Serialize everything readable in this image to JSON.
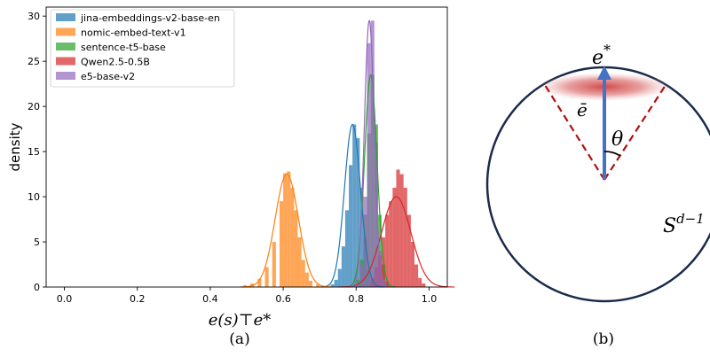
{
  "chart_data": [
    {
      "type": "histogram",
      "subcaption": "(a)",
      "xlabel": "e(s)⊤e*",
      "ylabel": "density",
      "xlim": [
        -0.05,
        1.05
      ],
      "ylim": [
        0,
        31
      ],
      "xticks": [
        "0.0",
        "0.2",
        "0.4",
        "0.6",
        "0.8",
        "1.0"
      ],
      "yticks": [
        "0",
        "5",
        "10",
        "15",
        "20",
        "25",
        "30"
      ],
      "legend_position": "top-left",
      "series": [
        {
          "name": "jina-embeddings-v2-base-en",
          "color": "#1f77b4",
          "fit_mean": 0.79,
          "fit_sd": 0.022,
          "fit_peak": 18.0,
          "bins": [
            [
              0.73,
              0.3
            ],
            [
              0.74,
              0.8
            ],
            [
              0.75,
              2.0
            ],
            [
              0.76,
              4.5
            ],
            [
              0.77,
              8.5
            ],
            [
              0.78,
              13.5
            ],
            [
              0.79,
              18.0
            ],
            [
              0.8,
              16.5
            ],
            [
              0.81,
              11.0
            ],
            [
              0.82,
              5.5
            ],
            [
              0.83,
              2.0
            ],
            [
              0.84,
              0.6
            ]
          ]
        },
        {
          "name": "nomic-embed-text-v1",
          "color": "#ff7f0e",
          "fit_mean": 0.61,
          "fit_sd": 0.032,
          "fit_peak": 12.5,
          "bins": [
            [
              0.49,
              0.2
            ],
            [
              0.51,
              0.4
            ],
            [
              0.53,
              0.9
            ],
            [
              0.55,
              2.2
            ],
            [
              0.57,
              5.0
            ],
            [
              0.59,
              9.5
            ],
            [
              0.6,
              12.6
            ],
            [
              0.61,
              12.8
            ],
            [
              0.62,
              11.0
            ],
            [
              0.63,
              8.5
            ],
            [
              0.64,
              5.5
            ],
            [
              0.65,
              3.0
            ],
            [
              0.66,
              1.6
            ],
            [
              0.67,
              0.7
            ],
            [
              0.69,
              0.3
            ]
          ]
        },
        {
          "name": "sentence-t5-base",
          "color": "#2ca02c",
          "fit_mean": 0.84,
          "fit_sd": 0.017,
          "fit_peak": 23.5,
          "bins": [
            [
              0.8,
              0.8
            ],
            [
              0.81,
              3.0
            ],
            [
              0.82,
              8.0
            ],
            [
              0.83,
              17.0
            ],
            [
              0.84,
              23.5
            ],
            [
              0.85,
              18.0
            ],
            [
              0.86,
              8.0
            ],
            [
              0.87,
              2.5
            ],
            [
              0.88,
              0.6
            ]
          ]
        },
        {
          "name": "Qwen2.5-0.5B",
          "color": "#d62728",
          "fit_mean": 0.91,
          "fit_sd": 0.04,
          "fit_peak": 10.0,
          "bins": [
            [
              0.84,
              1.0
            ],
            [
              0.85,
              2.2
            ],
            [
              0.86,
              3.5
            ],
            [
              0.87,
              5.5
            ],
            [
              0.88,
              8.0
            ],
            [
              0.89,
              9.5
            ],
            [
              0.9,
              11.0
            ],
            [
              0.91,
              13.0
            ],
            [
              0.92,
              12.5
            ],
            [
              0.93,
              11.0
            ],
            [
              0.94,
              8.0
            ],
            [
              0.95,
              5.0
            ],
            [
              0.96,
              2.5
            ],
            [
              0.97,
              1.0
            ],
            [
              0.98,
              0.4
            ]
          ]
        },
        {
          "name": "e5-base-v2",
          "color": "#9467bd",
          "fit_mean": 0.836,
          "fit_sd": 0.0135,
          "fit_peak": 29.5,
          "bins": [
            [
              0.8,
              0.5
            ],
            [
              0.81,
              2.5
            ],
            [
              0.82,
              10.0
            ],
            [
              0.83,
              27.0
            ],
            [
              0.84,
              29.5
            ],
            [
              0.85,
              16.0
            ],
            [
              0.86,
              4.0
            ],
            [
              0.87,
              0.8
            ]
          ]
        }
      ]
    },
    {
      "type": "diagram",
      "subcaption": "(b)",
      "labels": {
        "e_star": "e",
        "e_star_sup": "*",
        "e_bar": "ē",
        "theta": "θ",
        "sphere": "S",
        "sphere_sup": "d−1"
      },
      "colors": {
        "circle": "#1a2b4a",
        "arrow": "#4472c4",
        "cone": "#b01010",
        "cap": "#d04040"
      }
    }
  ]
}
